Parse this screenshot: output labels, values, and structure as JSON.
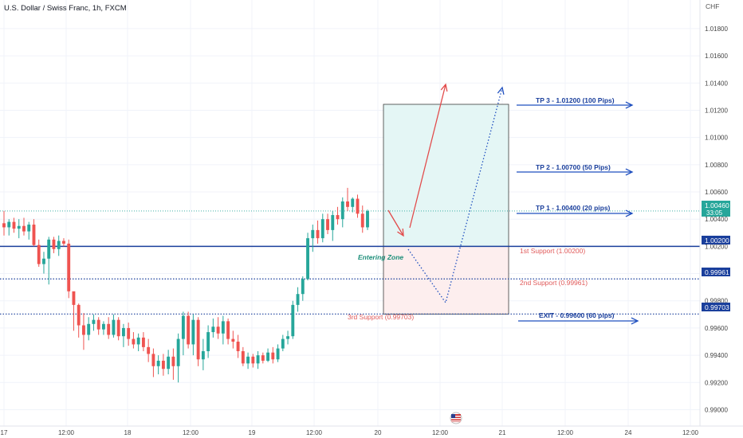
{
  "header": {
    "title": "U.S. Dollar / Swiss Franc, 1h, FXCM"
  },
  "axis": {
    "currency_label": "CHF"
  },
  "colors": {
    "up": "#26a69a",
    "down": "#ef5350",
    "blue": "#1a3f9c",
    "arrow_blue": "#1f4fbf",
    "red_text": "#e05a5a",
    "teal_text": "#1e8f7a"
  },
  "chart_data": {
    "type": "candlestick",
    "title": "U.S. Dollar / Swiss Franc, 1h, FXCM",
    "ylim": [
      0.9888,
      1.0201
    ],
    "y_ticks": [
      "1.01800",
      "1.01600",
      "1.01400",
      "1.01200",
      "1.01000",
      "1.00800",
      "1.00600",
      "1.00400",
      "1.00200",
      "1.00000",
      "0.99800",
      "0.99600",
      "0.99400",
      "0.99200",
      "0.99000"
    ],
    "x_ticks": [
      "17",
      "12:00",
      "18",
      "12:00",
      "19",
      "12:00",
      "20",
      "12:00",
      "21",
      "12:00",
      "24",
      "12:00"
    ],
    "candles": [
      {
        "o": 1.0037,
        "h": 1.0046,
        "l": 1.0028,
        "c": 1.0034
      },
      {
        "o": 1.0034,
        "h": 1.004,
        "l": 1.0028,
        "c": 1.0038
      },
      {
        "o": 1.0038,
        "h": 1.0041,
        "l": 1.003,
        "c": 1.0033
      },
      {
        "o": 1.0033,
        "h": 1.004,
        "l": 1.0026,
        "c": 1.0035
      },
      {
        "o": 1.0035,
        "h": 1.0041,
        "l": 1.0028,
        "c": 1.0031
      },
      {
        "o": 1.0031,
        "h": 1.0038,
        "l": 1.0025,
        "c": 1.0036
      },
      {
        "o": 1.0036,
        "h": 1.004,
        "l": 1.002,
        "c": 1.0021
      },
      {
        "o": 1.0021,
        "h": 1.0025,
        "l": 1.0005,
        "c": 1.0007
      },
      {
        "o": 1.0007,
        "h": 1.0016,
        "l": 1.0,
        "c": 1.0011
      },
      {
        "o": 1.0011,
        "h": 1.0027,
        "l": 0.9992,
        "c": 1.0025
      },
      {
        "o": 1.0025,
        "h": 1.0027,
        "l": 1.0015,
        "c": 1.0018
      },
      {
        "o": 1.0018,
        "h": 1.0028,
        "l": 1.0013,
        "c": 1.0024
      },
      {
        "o": 1.0024,
        "h": 1.0026,
        "l": 1.002,
        "c": 1.0022
      },
      {
        "o": 1.0022,
        "h": 1.0025,
        "l": 0.9982,
        "c": 0.9987
      },
      {
        "o": 0.9987,
        "h": 0.9985,
        "l": 0.9958,
        "c": 0.9977
      },
      {
        "o": 0.9977,
        "h": 0.9978,
        "l": 0.9953,
        "c": 0.9962
      },
      {
        "o": 0.9962,
        "h": 0.9971,
        "l": 0.9944,
        "c": 0.9955
      },
      {
        "o": 0.9955,
        "h": 0.9968,
        "l": 0.9951,
        "c": 0.9963
      },
      {
        "o": 0.9963,
        "h": 0.997,
        "l": 0.9958,
        "c": 0.9966
      },
      {
        "o": 0.9966,
        "h": 0.9968,
        "l": 0.9955,
        "c": 0.9959
      },
      {
        "o": 0.9959,
        "h": 0.9965,
        "l": 0.9955,
        "c": 0.9963
      },
      {
        "o": 0.9963,
        "h": 0.9968,
        "l": 0.9952,
        "c": 0.9955
      },
      {
        "o": 0.9955,
        "h": 0.997,
        "l": 0.9953,
        "c": 0.9966
      },
      {
        "o": 0.9966,
        "h": 0.9968,
        "l": 0.9951,
        "c": 0.9954
      },
      {
        "o": 0.9954,
        "h": 0.9963,
        "l": 0.9946,
        "c": 0.996
      },
      {
        "o": 0.996,
        "h": 0.9964,
        "l": 0.9947,
        "c": 0.9952
      },
      {
        "o": 0.9952,
        "h": 0.9957,
        "l": 0.9945,
        "c": 0.9948
      },
      {
        "o": 0.9948,
        "h": 0.9956,
        "l": 0.9943,
        "c": 0.9953
      },
      {
        "o": 0.9953,
        "h": 0.9957,
        "l": 0.9943,
        "c": 0.9946
      },
      {
        "o": 0.9946,
        "h": 0.9952,
        "l": 0.9935,
        "c": 0.9941
      },
      {
        "o": 0.9941,
        "h": 0.9945,
        "l": 0.9924,
        "c": 0.9932
      },
      {
        "o": 0.9932,
        "h": 0.994,
        "l": 0.9926,
        "c": 0.9936
      },
      {
        "o": 0.9936,
        "h": 0.9941,
        "l": 0.9925,
        "c": 0.993
      },
      {
        "o": 0.993,
        "h": 0.9944,
        "l": 0.9926,
        "c": 0.9939
      },
      {
        "o": 0.9939,
        "h": 0.9945,
        "l": 0.9922,
        "c": 0.9932
      },
      {
        "o": 0.9932,
        "h": 0.9956,
        "l": 0.992,
        "c": 0.9952
      },
      {
        "o": 0.9952,
        "h": 0.9972,
        "l": 0.994,
        "c": 0.9969
      },
      {
        "o": 0.9969,
        "h": 0.9972,
        "l": 0.9945,
        "c": 0.9948
      },
      {
        "o": 0.9948,
        "h": 0.997,
        "l": 0.994,
        "c": 0.9966
      },
      {
        "o": 0.9966,
        "h": 0.9968,
        "l": 0.9932,
        "c": 0.9937
      },
      {
        "o": 0.9937,
        "h": 0.9952,
        "l": 0.9929,
        "c": 0.9943
      },
      {
        "o": 0.9943,
        "h": 0.9962,
        "l": 0.9938,
        "c": 0.9957
      },
      {
        "o": 0.9957,
        "h": 0.9967,
        "l": 0.9953,
        "c": 0.9961
      },
      {
        "o": 0.9961,
        "h": 0.9968,
        "l": 0.9952,
        "c": 0.9956
      },
      {
        "o": 0.9956,
        "h": 0.9969,
        "l": 0.9948,
        "c": 0.9965
      },
      {
        "o": 0.9965,
        "h": 0.9967,
        "l": 0.9948,
        "c": 0.9952
      },
      {
        "o": 0.9952,
        "h": 0.9958,
        "l": 0.9945,
        "c": 0.995
      },
      {
        "o": 0.995,
        "h": 0.9955,
        "l": 0.9938,
        "c": 0.9943
      },
      {
        "o": 0.9943,
        "h": 0.9946,
        "l": 0.9932,
        "c": 0.9934
      },
      {
        "o": 0.9934,
        "h": 0.9942,
        "l": 0.993,
        "c": 0.9939
      },
      {
        "o": 0.9939,
        "h": 0.9941,
        "l": 0.9931,
        "c": 0.9934
      },
      {
        "o": 0.9934,
        "h": 0.9943,
        "l": 0.993,
        "c": 0.994
      },
      {
        "o": 0.994,
        "h": 0.9942,
        "l": 0.9934,
        "c": 0.9936
      },
      {
        "o": 0.9936,
        "h": 0.9945,
        "l": 0.9935,
        "c": 0.9942
      },
      {
        "o": 0.9942,
        "h": 0.9946,
        "l": 0.9934,
        "c": 0.9937
      },
      {
        "o": 0.9937,
        "h": 0.9948,
        "l": 0.9935,
        "c": 0.9945
      },
      {
        "o": 0.9945,
        "h": 0.9955,
        "l": 0.9943,
        "c": 0.9952
      },
      {
        "o": 0.9952,
        "h": 0.9958,
        "l": 0.9948,
        "c": 0.9954
      },
      {
        "o": 0.9954,
        "h": 0.998,
        "l": 0.9952,
        "c": 0.9977
      },
      {
        "o": 0.9977,
        "h": 0.999,
        "l": 0.9972,
        "c": 0.9985
      },
      {
        "o": 0.9985,
        "h": 0.9998,
        "l": 0.998,
        "c": 0.9996
      },
      {
        "o": 0.9996,
        "h": 1.003,
        "l": 0.9995,
        "c": 1.0026
      },
      {
        "o": 1.0026,
        "h": 1.0036,
        "l": 1.0016,
        "c": 1.0032
      },
      {
        "o": 1.0032,
        "h": 1.0039,
        "l": 1.0022,
        "c": 1.0026
      },
      {
        "o": 1.0026,
        "h": 1.0044,
        "l": 1.0023,
        "c": 1.004
      },
      {
        "o": 1.004,
        "h": 1.0044,
        "l": 1.0029,
        "c": 1.0032
      },
      {
        "o": 1.0032,
        "h": 1.0046,
        "l": 1.0024,
        "c": 1.0043
      },
      {
        "o": 1.0043,
        "h": 1.0049,
        "l": 1.0036,
        "c": 1.004
      },
      {
        "o": 1.004,
        "h": 1.0056,
        "l": 1.0034,
        "c": 1.0053
      },
      {
        "o": 1.0053,
        "h": 1.0063,
        "l": 1.0046,
        "c": 1.0049
      },
      {
        "o": 1.0049,
        "h": 1.0056,
        "l": 1.0045,
        "c": 1.0055
      },
      {
        "o": 1.0055,
        "h": 1.0058,
        "l": 1.0041,
        "c": 1.0044
      },
      {
        "o": 1.0044,
        "h": 1.005,
        "l": 1.003,
        "c": 1.0034
      },
      {
        "o": 1.0034,
        "h": 1.0047,
        "l": 1.0032,
        "c": 1.0046
      }
    ],
    "levels": [
      {
        "name": "1st Support",
        "value": 1.002,
        "style": "solid",
        "tag": "1.00200"
      },
      {
        "name": "2nd Support",
        "value": 0.99961,
        "style": "dotted",
        "tag": "0.99961"
      },
      {
        "name": "3rd Support",
        "value": 0.99703,
        "style": "dotted",
        "tag": "0.99703"
      }
    ],
    "current_price": {
      "value": 1.0046,
      "tag": "1.00460",
      "countdown": "33:05"
    }
  },
  "annotations": {
    "entering_zone": "Entering Zone",
    "support1": "1st Support (1.00200)",
    "support2": "2nd Support (0.99961)",
    "support3": "3rd Support (0.99703)",
    "tp3": "TP 3 - 1.01200 (100 Pips)",
    "tp2": "TP 2 - 1.00700 (50 Pips)",
    "tp1": "TP 1 - 1.00400 (20 pips)",
    "exit": "EXIT - 0.99600 (60 pips)"
  }
}
